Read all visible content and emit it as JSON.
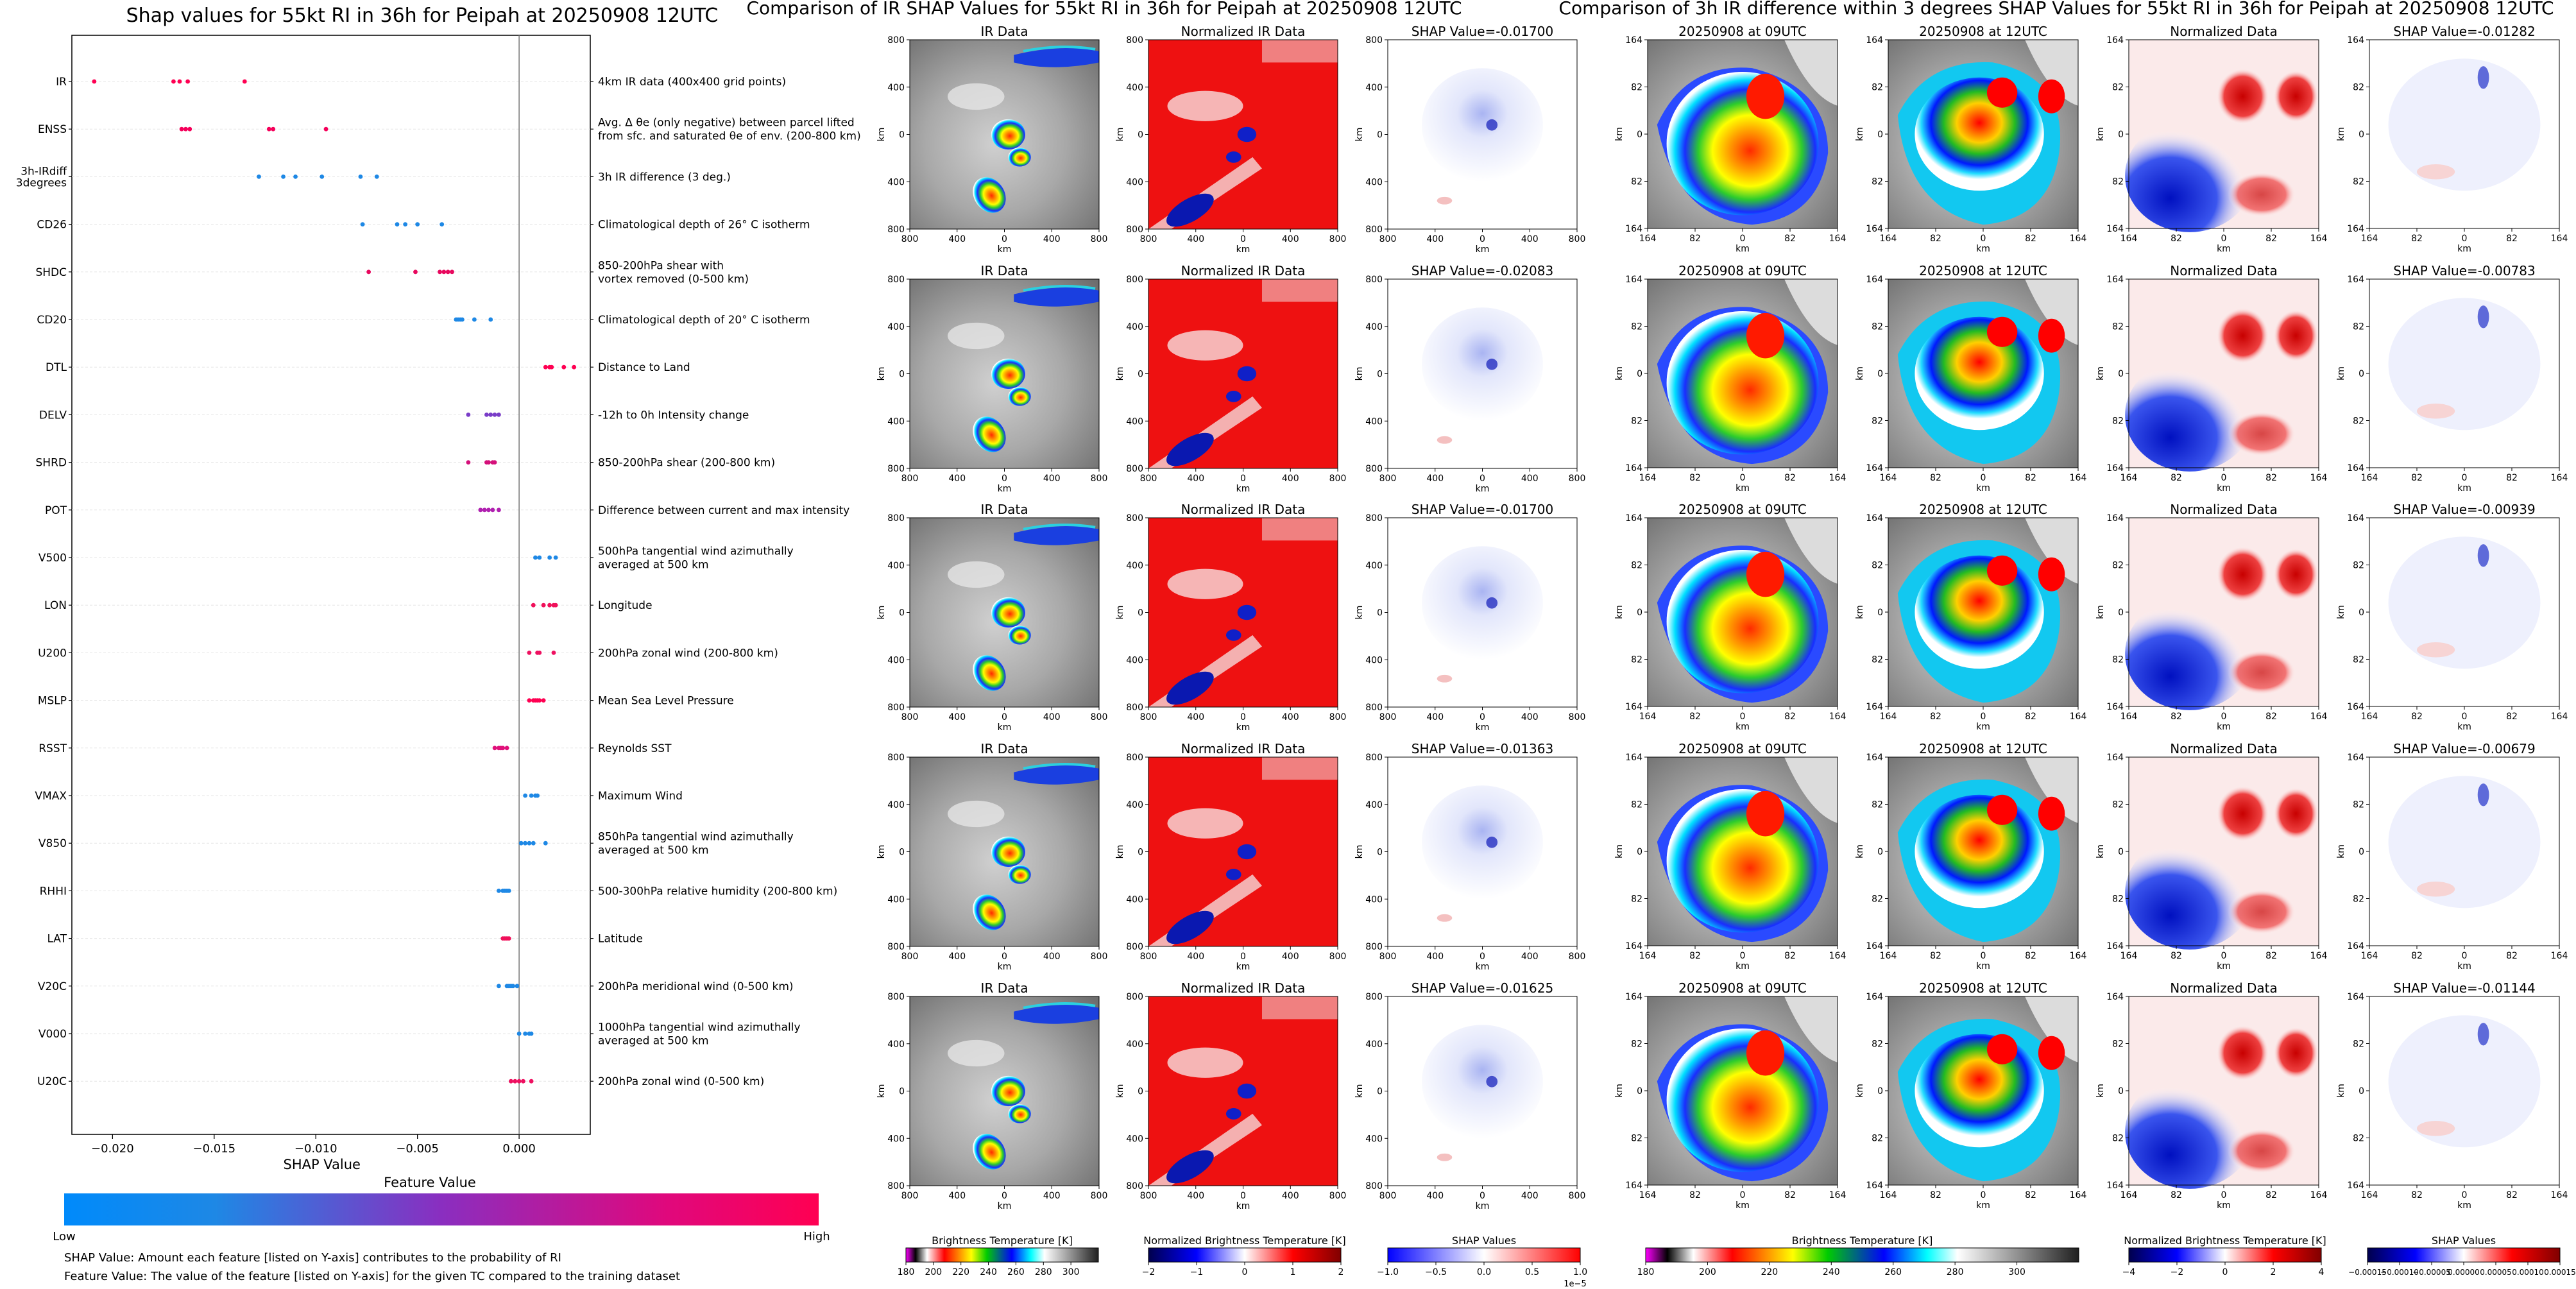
{
  "colors": {
    "shap_low": "#1e88e5",
    "shap_high": "#ff0052",
    "ir_blue": "#0a2fd8",
    "ir_red": "#e01010",
    "norm_red": "#ee1111",
    "norm_blue": "#1020c8"
  },
  "icons": [],
  "shap_panel": {
    "title": "Shap values for 55kt RI in 36h for Peipah at 20250908 12UTC",
    "xlabel": "SHAP Value",
    "colorbar_title": "Feature Value",
    "low_label": "Low",
    "high_label": "High",
    "footnote_1": "SHAP Value: Amount each feature [listed on Y-axis] contributes to the probability of RI",
    "footnote_2": "Feature Value: The value of the feature [listed on Y-axis] for the given TC compared to the training dataset"
  },
  "chart_data": [
    {
      "type": "scatter",
      "title": "Shap values for 55kt RI in 36h for Peipah at 20250908 12UTC",
      "xlabel": "SHAP Value",
      "xlim": [
        -0.022,
        0.0035
      ],
      "xticks": [
        -0.02,
        -0.015,
        -0.01,
        -0.005,
        0.0
      ],
      "xtick_labels": [
        "−0.020",
        "−0.015",
        "−0.010",
        "−0.005",
        "0.000"
      ],
      "features": [
        {
          "name": "IR",
          "desc": "4km IR data (400x400 grid points)",
          "color": "#ff0052",
          "points": [
            -0.0209,
            -0.017,
            -0.0167,
            -0.0163,
            -0.0135
          ]
        },
        {
          "name": "ENSS",
          "desc": "Avg. Δ θe (only negative) between parcel lifted\nfrom sfc. and saturated θe of env. (200-800 km)",
          "color": "#f5005a",
          "points": [
            -0.0166,
            -0.0164,
            -0.0162,
            -0.0123,
            -0.0121,
            -0.0095
          ]
        },
        {
          "name": "3h-IRdiff\n3degrees",
          "desc": "3h IR difference (3 deg.)",
          "color": "#1e88e5",
          "points": [
            -0.0128,
            -0.0116,
            -0.011,
            -0.0097,
            -0.0078,
            -0.007
          ]
        },
        {
          "name": "CD26",
          "desc": "Climatological depth of 26° C isotherm",
          "color": "#1e88e5",
          "points": [
            -0.0077,
            -0.006,
            -0.0056,
            -0.005,
            -0.0038
          ]
        },
        {
          "name": "SHDC",
          "desc": "850-200hPa shear with\nvortex removed (0-500 km)",
          "color": "#e8085e",
          "points": [
            -0.0074,
            -0.0051,
            -0.0039,
            -0.0037,
            -0.0035,
            -0.0033
          ]
        },
        {
          "name": "CD20",
          "desc": "Climatological depth of 20° C isotherm",
          "color": "#1e88e5",
          "points": [
            -0.0031,
            -0.003,
            -0.0029,
            -0.0028,
            -0.0022,
            -0.0014
          ]
        },
        {
          "name": "DTL",
          "desc": "Distance to Land",
          "color": "#ff0052",
          "points": [
            0.0013,
            0.0015,
            0.0016,
            0.0022,
            0.0027
          ]
        },
        {
          "name": "DELV",
          "desc": "-12h to 0h Intensity change",
          "color": "#7a3dc8",
          "points": [
            -0.0025,
            -0.0016,
            -0.0014,
            -0.0012,
            -0.001
          ]
        },
        {
          "name": "SHRD",
          "desc": "850-200hPa shear (200-800 km)",
          "color": "#d4107a",
          "points": [
            -0.0025,
            -0.0016,
            -0.0015,
            -0.0013,
            -0.0012
          ]
        },
        {
          "name": "POT",
          "desc": "Difference between current and max intensity",
          "color": "#b020b0",
          "points": [
            -0.0019,
            -0.0017,
            -0.0015,
            -0.0013,
            -0.001
          ]
        },
        {
          "name": "V500",
          "desc": "500hPa tangential wind azimuthally\naveraged at 500 km",
          "color": "#1e88e5",
          "points": [
            0.0008,
            0.001,
            0.0015,
            0.0018
          ]
        },
        {
          "name": "LON",
          "desc": "Longitude",
          "color": "#f0105a",
          "points": [
            0.0007,
            0.0012,
            0.0015,
            0.0017,
            0.0018
          ]
        },
        {
          "name": "U200",
          "desc": "200hPa zonal wind (200-800 km)",
          "color": "#ee1060",
          "points": [
            0.0005,
            0.0009,
            0.001,
            0.0017
          ]
        },
        {
          "name": "MSLP",
          "desc": "Mean Sea Level Pressure",
          "color": "#ff0052",
          "points": [
            0.0005,
            0.0007,
            0.0008,
            0.0009,
            0.001,
            0.0012
          ]
        },
        {
          "name": "RSST",
          "desc": "Reynolds SST",
          "color": "#e0107a",
          "points": [
            -0.0012,
            -0.001,
            -0.0009,
            -0.0008,
            -0.0006
          ]
        },
        {
          "name": "VMAX",
          "desc": "Maximum Wind",
          "color": "#1e88e5",
          "points": [
            0.0003,
            0.0006,
            0.0008,
            0.0009
          ]
        },
        {
          "name": "V850",
          "desc": "850hPa tangential wind azimuthally\naveraged at 500 km",
          "color": "#1e88e5",
          "points": [
            0.0001,
            0.0003,
            0.0005,
            0.0007,
            0.0013
          ]
        },
        {
          "name": "RHHI",
          "desc": "500-300hPa relative humidity (200-800 km)",
          "color": "#1e88e5",
          "points": [
            -0.001,
            -0.0008,
            -0.0007,
            -0.0006,
            -0.0005
          ]
        },
        {
          "name": "LAT",
          "desc": "Latitude",
          "color": "#f0105a",
          "points": [
            -0.0008,
            -0.0007,
            -0.0006,
            -0.0005
          ]
        },
        {
          "name": "V20C",
          "desc": "200hPa meridional wind (0-500 km)",
          "color": "#1e88e5",
          "points": [
            -0.001,
            -0.0006,
            -0.0005,
            -0.0004,
            -0.0003,
            -0.0001
          ]
        },
        {
          "name": "V000",
          "desc": "1000hPa tangential wind azimuthally\naveraged at 500 km",
          "color": "#1e88e5",
          "points": [
            0.0,
            0.0003,
            0.0005,
            0.0006
          ]
        },
        {
          "name": "U20C",
          "desc": "200hPa zonal wind (0-500 km)",
          "color": "#ee1060",
          "points": [
            -0.0004,
            -0.0002,
            0.0,
            0.0002,
            0.0006
          ]
        }
      ]
    },
    {
      "type": "heatmap",
      "title": "Comparison of IR SHAP Values for 55kt RI in 36h for Peipah at 20250908 12UTC",
      "columns": [
        "IR Data",
        "Normalized IR Data",
        "SHAP Value"
      ],
      "axis_ticks": [
        "800",
        "400",
        "0",
        "400",
        "800"
      ],
      "axis_label": "km",
      "shap_values": [
        "-0.01700",
        "-0.02083",
        "-0.01700",
        "-0.01363",
        "-0.01625"
      ],
      "colorbars": [
        {
          "label": "Brightness Temperature [K]",
          "ticks": [
            "180",
            "200",
            "220",
            "240",
            "260",
            "280",
            "300"
          ]
        },
        {
          "label": "Normalized Brightness Temperature [K]",
          "ticks": [
            "−2",
            "−1",
            "0",
            "1",
            "2"
          ]
        },
        {
          "label": "SHAP Values",
          "ticks": [
            "−1.0",
            "−0.5",
            "0.0",
            "0.5",
            "1.0"
          ],
          "exponent": "1e−5"
        }
      ]
    },
    {
      "type": "heatmap",
      "title": "Comparison of 3h IR difference within 3 degrees SHAP Values for 55kt RI in 36h for Peipah at 20250908 12UTC",
      "columns": [
        "20250908 at 09UTC",
        "20250908 at 12UTC",
        "Normalized Data",
        "SHAP Value"
      ],
      "axis_ticks": [
        "164",
        "82",
        "0",
        "82",
        "164"
      ],
      "axis_label": "km",
      "shap_values": [
        "-0.01282",
        "-0.00783",
        "-0.00939",
        "-0.00679",
        "-0.01144"
      ],
      "colorbars": [
        {
          "label": "Brightness Temperature [K]",
          "ticks": [
            "180",
            "200",
            "220",
            "240",
            "260",
            "280",
            "300"
          ]
        },
        {
          "label": "Normalized Brightness Temperature [K]",
          "ticks": [
            "−4",
            "−2",
            "0",
            "2",
            "4"
          ]
        },
        {
          "label": "SHAP Values",
          "ticks": [
            "−0.00015",
            "−0.00010",
            "−0.00005",
            "0.00000",
            "0.00005",
            "0.00010",
            "0.00015"
          ]
        }
      ]
    }
  ]
}
